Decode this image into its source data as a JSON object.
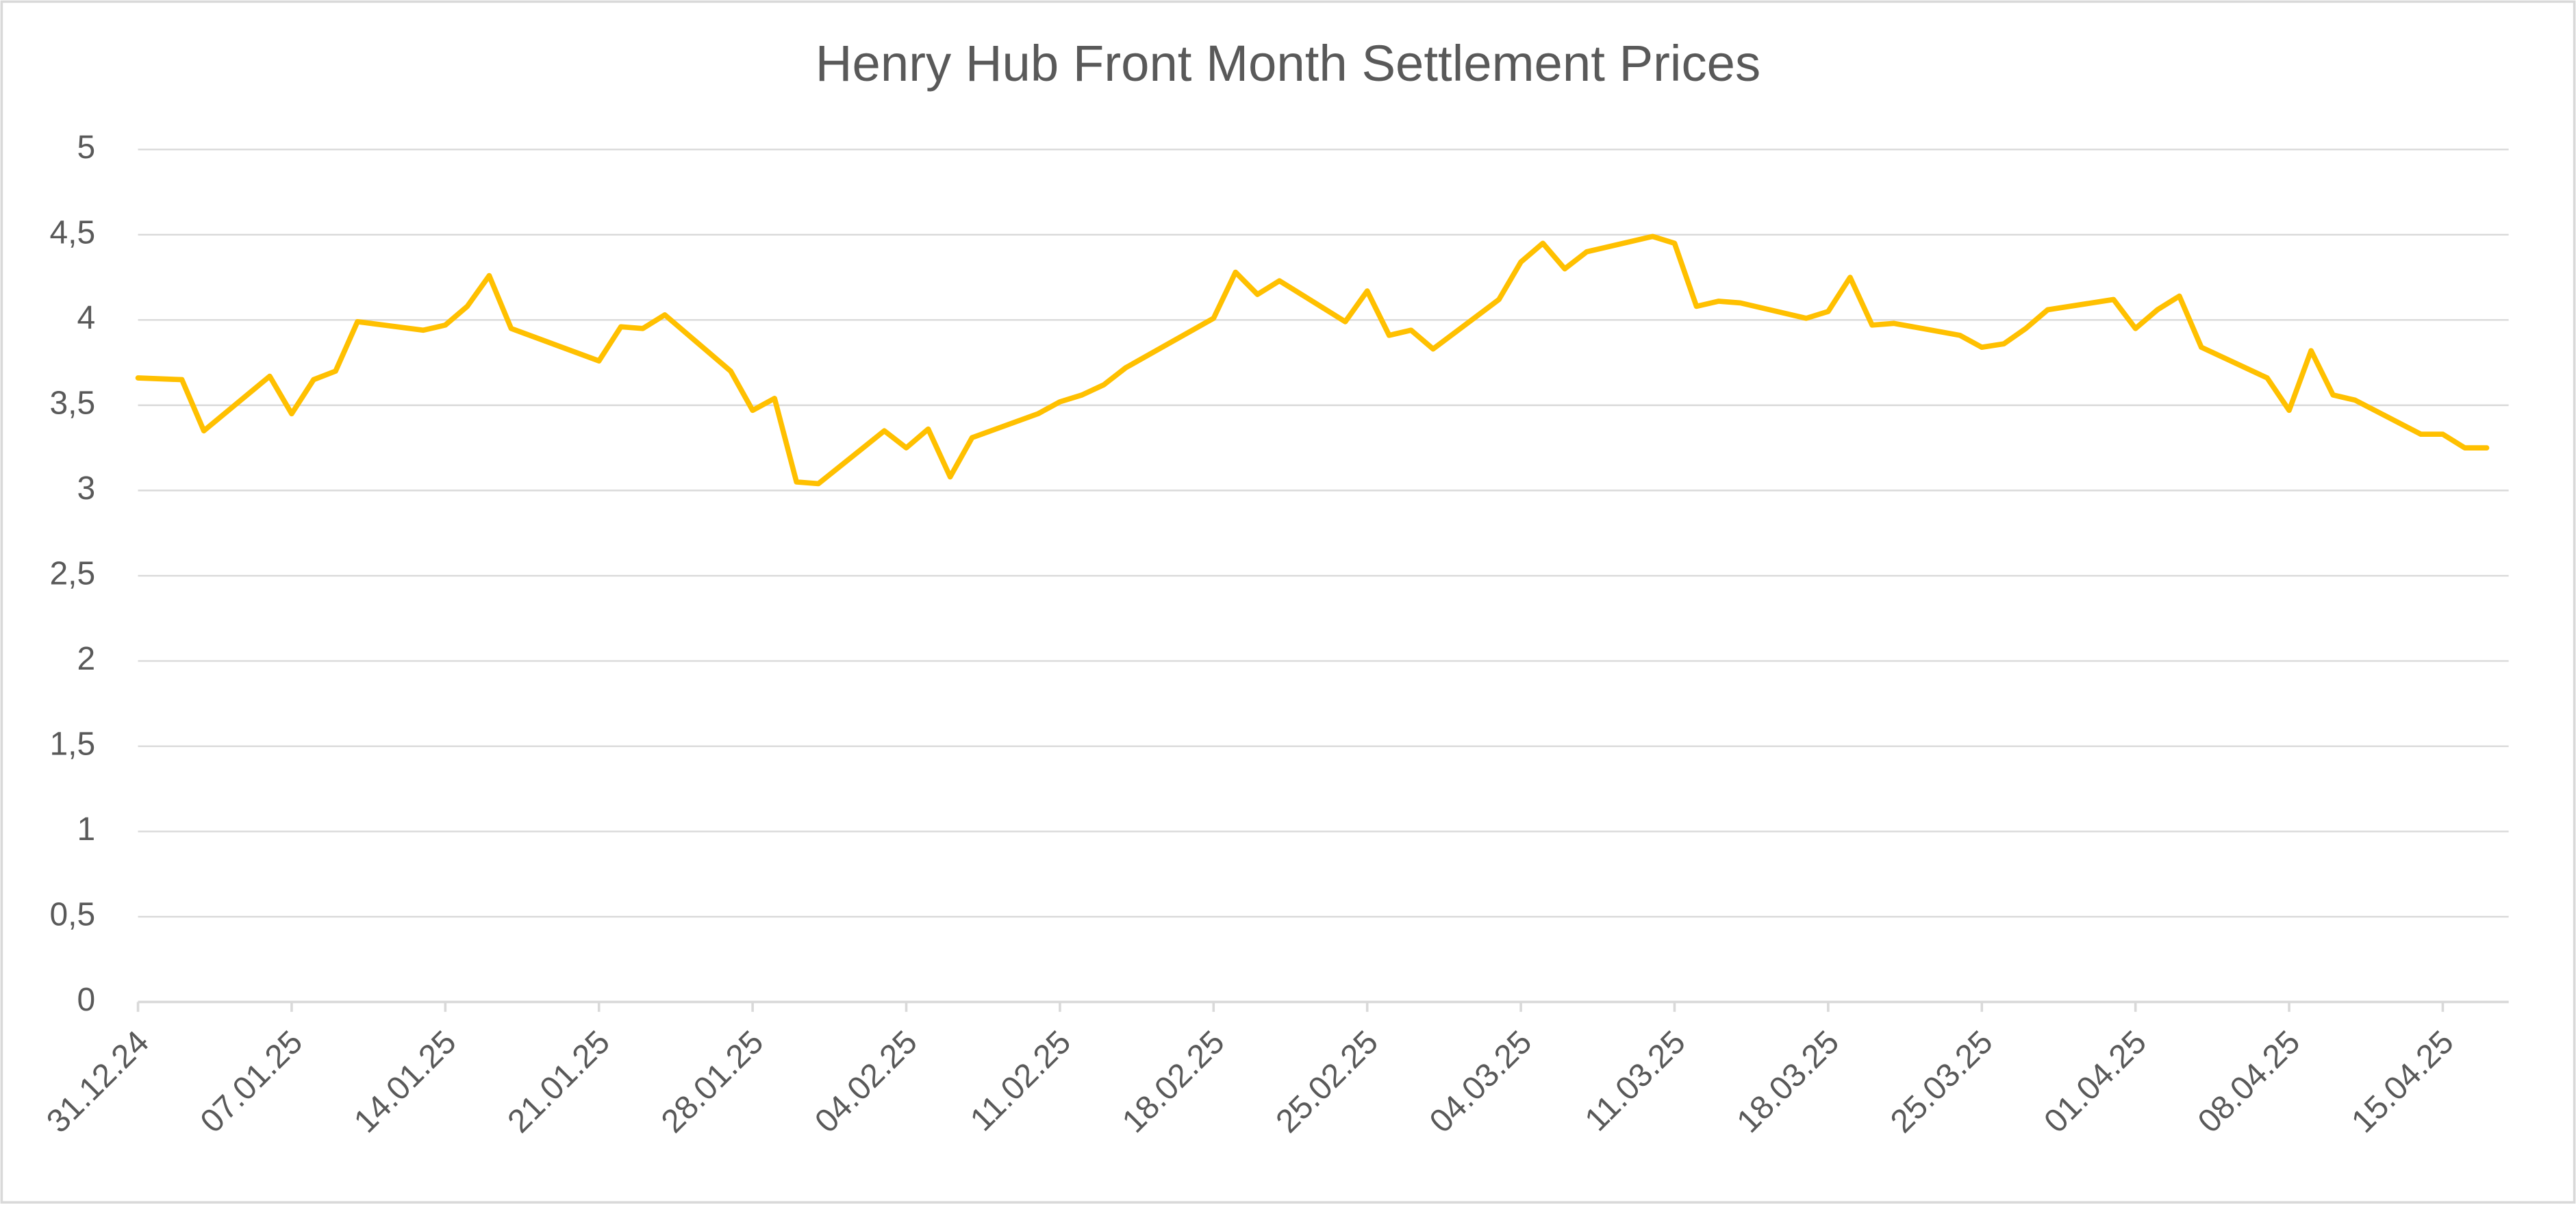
{
  "chart_data": {
    "type": "line",
    "title": "Henry Hub Front Month Settlement Prices",
    "x": [
      "31.12.24",
      "02.01.25",
      "03.01.25",
      "06.01.25",
      "07.01.25",
      "08.01.25",
      "09.01.25",
      "10.01.25",
      "13.01.25",
      "14.01.25",
      "15.01.25",
      "16.01.25",
      "17.01.25",
      "21.01.25",
      "22.01.25",
      "23.01.25",
      "24.01.25",
      "27.01.25",
      "28.01.25",
      "29.01.25",
      "30.01.25",
      "31.01.25",
      "03.02.25",
      "04.02.25",
      "05.02.25",
      "06.02.25",
      "07.02.25",
      "10.02.25",
      "11.02.25",
      "12.02.25",
      "13.02.25",
      "14.02.25",
      "18.02.25",
      "19.02.25",
      "20.02.25",
      "21.02.25",
      "24.02.25",
      "25.02.25",
      "26.02.25",
      "27.02.25",
      "28.02.25",
      "03.03.25",
      "04.03.25",
      "05.03.25",
      "06.03.25",
      "07.03.25",
      "10.03.25",
      "11.03.25",
      "12.03.25",
      "13.03.25",
      "14.03.25",
      "17.03.25",
      "18.03.25",
      "19.03.25",
      "20.03.25",
      "21.03.25",
      "24.03.25",
      "25.03.25",
      "26.03.25",
      "27.03.25",
      "28.03.25",
      "31.03.25",
      "01.04.25",
      "02.04.25",
      "03.04.25",
      "04.04.25",
      "07.04.25",
      "08.04.25",
      "09.04.25",
      "10.04.25",
      "11.04.25",
      "14.04.25",
      "15.04.25",
      "16.04.25",
      "17.04.25"
    ],
    "values": [
      3.66,
      3.65,
      3.35,
      3.67,
      3.45,
      3.65,
      3.7,
      3.99,
      3.94,
      3.97,
      4.08,
      4.26,
      3.95,
      3.76,
      3.96,
      3.95,
      4.03,
      3.7,
      3.47,
      3.54,
      3.05,
      3.04,
      3.35,
      3.25,
      3.36,
      3.08,
      3.31,
      3.45,
      3.52,
      3.56,
      3.62,
      3.72,
      4.01,
      4.28,
      4.15,
      4.23,
      3.99,
      4.17,
      3.91,
      3.94,
      3.83,
      4.12,
      4.34,
      4.45,
      4.3,
      4.4,
      4.49,
      4.45,
      4.08,
      4.11,
      4.1,
      4.01,
      4.05,
      4.25,
      3.97,
      3.98,
      3.91,
      3.84,
      3.86,
      3.95,
      4.06,
      4.12,
      3.95,
      4.06,
      4.14,
      3.84,
      3.66,
      3.47,
      3.82,
      3.56,
      3.53,
      3.33,
      3.33,
      3.25,
      3.25
    ],
    "color": "#ffc000",
    "xlim": [
      "31.12.24",
      "18.04.25"
    ],
    "xticks": [
      "31.12.24",
      "07.01.25",
      "14.01.25",
      "21.01.25",
      "28.01.25",
      "04.02.25",
      "11.02.25",
      "18.02.25",
      "25.02.25",
      "04.03.25",
      "11.03.25",
      "18.03.25",
      "25.03.25",
      "01.04.25",
      "08.04.25",
      "15.04.25"
    ],
    "ylim": [
      0,
      5
    ],
    "yticks": [
      0,
      {
        "value": 0.5,
        "label": "0,5"
      },
      1,
      {
        "value": 1.5,
        "label": "1,5"
      },
      2,
      {
        "value": 2.5,
        "label": "2,5"
      },
      3,
      {
        "value": 3.5,
        "label": "3,5"
      },
      4,
      {
        "value": 4.5,
        "label": "4,5"
      },
      5
    ],
    "grid": true
  }
}
